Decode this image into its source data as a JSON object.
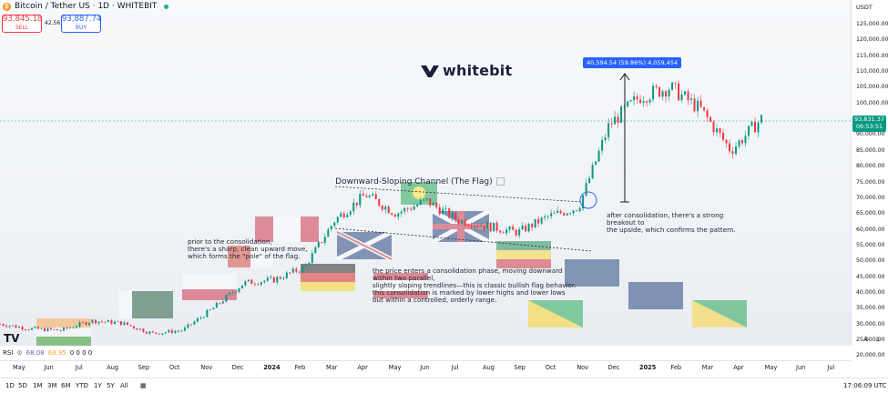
{
  "header": {
    "symbol": "Bitcoin / Tether US · 1D · WHITEBIT",
    "sell_price": "93,845.18",
    "sell_label": "SELL",
    "buy_price": "93,887.74",
    "buy_label": "BUY",
    "spread": "42.56"
  },
  "logo": {
    "text": "whitebit"
  },
  "price_scale": {
    "currency": "USDT",
    "ticks": [
      "125,000.00",
      "120,000.00",
      "115,000.00",
      "110,000.00",
      "105,000.00",
      "100,000.00",
      "95,000.00",
      "90,000.00",
      "85,000.00",
      "80,000.00",
      "75,000.00",
      "70,000.00",
      "65,000.00",
      "60,000.00",
      "55,000.00",
      "50,000.00",
      "45,000.00",
      "40,000.00",
      "35,000.00",
      "30,000.00",
      "25,000.00",
      "20,000.00"
    ],
    "current_price": "93,831.37",
    "countdown": "06:53:51",
    "auto_label": "A",
    "log_label": "L"
  },
  "annotations": {
    "channel_title": "Downward-Sloping Channel (The Flag)",
    "measure_label": "40,594.54 (59.86%) 4,059,454",
    "pole_text": "prior to the consolidation,\nthere's a sharp, clean upward move,\nwhich forms the \"pole\" of the flag.",
    "flag_text": "the price enters a consolidation phase, moving downward\nwithin two parallel,\nslightly sloping trendlines—this is classic bullish flag behavior.\nthis consolidation is marked by lower highs and lower lows\nbut within a controlled, orderly range.",
    "breakout_text": "after consolidation, there's a strong\nbreakout to\nthe upside, which confirms the pattern."
  },
  "rsi": {
    "label": "RSI",
    "value1": "68.08",
    "value2": "63.95",
    "extra": "0 0 0 0"
  },
  "time_axis": {
    "labels": [
      "May",
      "Jun",
      "Jul",
      "Aug",
      "Sep",
      "Oct",
      "Nov",
      "Dec",
      "2024",
      "Feb",
      "Mar",
      "Apr",
      "May",
      "Jun",
      "Jul",
      "Aug",
      "Sep",
      "Oct",
      "Nov",
      "Dec",
      "2025",
      "Feb",
      "Mar",
      "Apr",
      "May",
      "Jun",
      "Jul"
    ]
  },
  "bottom_bar": {
    "ranges": [
      "1D",
      "5D",
      "1M",
      "3M",
      "6M",
      "YTD",
      "1Y",
      "5Y",
      "All"
    ],
    "clock": "17:06:09 UTC"
  },
  "colors": {
    "up": "#089981",
    "down": "#f23645",
    "accent": "#2962ff"
  },
  "chart_data": {
    "type": "line",
    "x": [
      "2023-04",
      "2023-05",
      "2023-06",
      "2023-07",
      "2023-08",
      "2023-09",
      "2023-10",
      "2023-11",
      "2023-12",
      "2024-01",
      "2024-02",
      "2024-03",
      "2024-04",
      "2024-05",
      "2024-06",
      "2024-07",
      "2024-08",
      "2024-09",
      "2024-10",
      "2024-11",
      "2024-12",
      "2025-01",
      "2025-02",
      "2025-03",
      "2025-04",
      "2025-04b"
    ],
    "series": [
      {
        "values": [
          29000,
          27500,
          27000,
          30000,
          29300,
          26000,
          27000,
          34000,
          42000,
          43000,
          47000,
          62000,
          70000,
          64000,
          68000,
          62000,
          60000,
          58000,
          63000,
          66000,
          92000,
          101000,
          104000,
          97000,
          84000,
          94000
        ]
      }
    ],
    "ylim": [
      20000,
      125000
    ]
  }
}
